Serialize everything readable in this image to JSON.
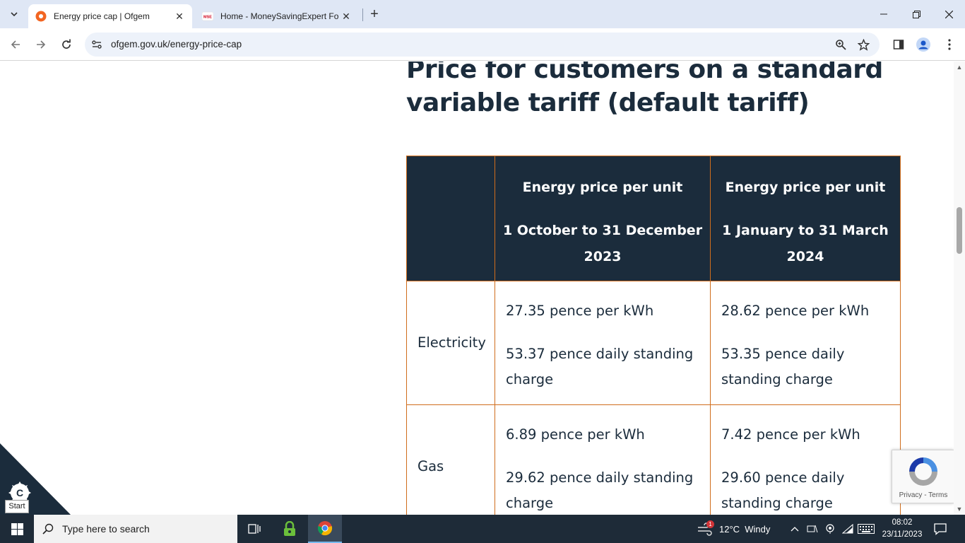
{
  "browser": {
    "tabs": [
      {
        "title": "Energy price cap | Ofgem",
        "active": true
      },
      {
        "title": "Home - MoneySavingExpert Fo",
        "favicon_text": "MSE",
        "active": false
      }
    ],
    "url": "ofgem.gov.uk/energy-price-cap"
  },
  "page": {
    "heading_line1": "Price for customers on a standard",
    "heading_line2": "variable tariff (default tariff)",
    "table": {
      "headers": [
        {
          "line1": "",
          "line2": ""
        },
        {
          "line1": "Energy price per unit",
          "line2": "1 October to 31 December 2023"
        },
        {
          "line1": "Energy price per unit",
          "line2": "1 January to 31 March 2024"
        }
      ],
      "rows": [
        {
          "label": "Electricity",
          "cells": [
            {
              "unit": "27.35 pence per kWh",
              "standing": "53.37 pence daily standing charge"
            },
            {
              "unit": "28.62 pence per kWh",
              "standing": "53.35 pence daily standing charge"
            }
          ]
        },
        {
          "label": "Gas",
          "cells": [
            {
              "unit": "6.89 pence per kWh",
              "standing": "29.62 pence daily standing charge"
            },
            {
              "unit": "7.42 pence per kWh",
              "standing": "29.60 pence daily standing charge"
            }
          ]
        }
      ]
    },
    "cookie_label": "Start",
    "recaptcha_links": "Privacy - Terms"
  },
  "taskbar": {
    "search_placeholder": "Type here to search",
    "weather": "12°C  Windy",
    "notification_count": "1",
    "time": "08:02",
    "date": "23/11/2023"
  },
  "colors": {
    "table_header_bg": "#1b2c3c",
    "table_border": "#d06d1c",
    "text_dark": "#1b2c3c",
    "tabstrip_bg": "#dfe7f5"
  }
}
